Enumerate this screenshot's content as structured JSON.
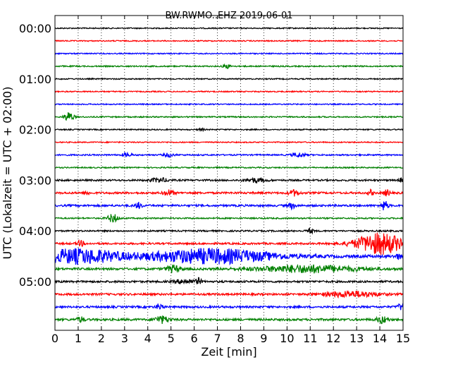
{
  "chart_data": {
    "type": "line",
    "title": "BW.RWMO..EHZ 2019-06-01",
    "xlabel": "Zeit  [min]",
    "ylabel": "UTC (Lokalzeit = UTC + 02:00)",
    "xlim": [
      0,
      15
    ],
    "x_ticks": [
      "0",
      "1",
      "2",
      "3",
      "4",
      "5",
      "6",
      "7",
      "8",
      "9",
      "10",
      "11",
      "12",
      "13",
      "14",
      "15"
    ],
    "y_tick_labels": [
      "00:00",
      "01:00",
      "02:00",
      "03:00",
      "04:00",
      "05:00"
    ],
    "grid": "vertical dotted lines at each minute",
    "trace_colors": [
      "#000000",
      "#ff0000",
      "#0000ff",
      "#008000"
    ],
    "traces": [
      {
        "start": "00:00",
        "color": "#000000",
        "noise": 0.8,
        "events": []
      },
      {
        "start": "00:15",
        "color": "#ff0000",
        "noise": 0.8,
        "events": []
      },
      {
        "start": "00:30",
        "color": "#0000ff",
        "noise": 0.8,
        "events": []
      },
      {
        "start": "00:45",
        "color": "#008000",
        "noise": 0.9,
        "events": [
          {
            "t": 7.4,
            "amp": 3,
            "dur": 0.2
          }
        ]
      },
      {
        "start": "01:00",
        "color": "#000000",
        "noise": 0.8,
        "events": []
      },
      {
        "start": "01:15",
        "color": "#ff0000",
        "noise": 0.8,
        "events": []
      },
      {
        "start": "01:30",
        "color": "#0000ff",
        "noise": 0.8,
        "events": []
      },
      {
        "start": "01:45",
        "color": "#008000",
        "noise": 0.9,
        "events": [
          {
            "t": 0.6,
            "amp": 7,
            "dur": 0.25
          }
        ]
      },
      {
        "start": "02:00",
        "color": "#000000",
        "noise": 0.8,
        "events": [
          {
            "t": 6.3,
            "amp": 2,
            "dur": 0.15
          }
        ]
      },
      {
        "start": "02:15",
        "color": "#ff0000",
        "noise": 0.8,
        "events": []
      },
      {
        "start": "02:30",
        "color": "#0000ff",
        "noise": 1.0,
        "events": [
          {
            "t": 3.1,
            "amp": 2.5,
            "dur": 0.3
          },
          {
            "t": 4.9,
            "amp": 2.5,
            "dur": 0.3
          },
          {
            "t": 10.5,
            "amp": 3,
            "dur": 0.4
          }
        ]
      },
      {
        "start": "02:45",
        "color": "#008000",
        "noise": 0.9,
        "events": []
      },
      {
        "start": "03:00",
        "color": "#000000",
        "noise": 1.2,
        "events": [
          {
            "t": 4.5,
            "amp": 3,
            "dur": 0.5
          },
          {
            "t": 8.6,
            "amp": 3,
            "dur": 0.6
          },
          {
            "t": 14.9,
            "amp": 3,
            "dur": 0.1
          }
        ]
      },
      {
        "start": "03:15",
        "color": "#ff0000",
        "noise": 1.4,
        "events": [
          {
            "t": 1.4,
            "amp": 4,
            "dur": 0.1
          },
          {
            "t": 4.9,
            "amp": 4,
            "dur": 0.3
          },
          {
            "t": 10.3,
            "amp": 4,
            "dur": 0.3
          },
          {
            "t": 13.6,
            "amp": 4,
            "dur": 0.15
          },
          {
            "t": 14.3,
            "amp": 4,
            "dur": 0.2
          }
        ]
      },
      {
        "start": "03:30",
        "color": "#0000ff",
        "noise": 1.4,
        "events": [
          {
            "t": 3.6,
            "amp": 4,
            "dur": 0.2
          },
          {
            "t": 10.2,
            "amp": 4,
            "dur": 0.2
          },
          {
            "t": 14.2,
            "amp": 7,
            "dur": 0.2
          }
        ]
      },
      {
        "start": "03:45",
        "color": "#008000",
        "noise": 1.0,
        "events": [
          {
            "t": 2.5,
            "amp": 6,
            "dur": 0.3
          }
        ]
      },
      {
        "start": "04:00",
        "color": "#000000",
        "noise": 1.1,
        "events": [
          {
            "t": 11.0,
            "amp": 3,
            "dur": 0.2
          }
        ]
      },
      {
        "start": "04:15",
        "color": "#ff0000",
        "noise": 1.3,
        "events": [
          {
            "t": 1.1,
            "amp": 4,
            "dur": 0.2
          },
          {
            "t": 14.0,
            "amp": 15,
            "dur": 1.4
          }
        ]
      },
      {
        "start": "04:30",
        "color": "#0000ff",
        "noise": 2.0,
        "events": [
          {
            "t": 1.0,
            "amp": 10,
            "dur": 2.4
          },
          {
            "t": 6.7,
            "amp": 10,
            "dur": 3.6
          },
          {
            "t": 14.8,
            "amp": 3,
            "dur": 0.2
          }
        ]
      },
      {
        "start": "04:45",
        "color": "#008000",
        "noise": 1.5,
        "events": [
          {
            "t": 5.1,
            "amp": 5,
            "dur": 0.4
          },
          {
            "t": 10.9,
            "amp": 5,
            "dur": 3.0
          }
        ]
      },
      {
        "start": "05:00",
        "color": "#000000",
        "noise": 1.4,
        "events": [
          {
            "t": 5.6,
            "amp": 3,
            "dur": 0.6
          },
          {
            "t": 6.2,
            "amp": 4,
            "dur": 0.15
          }
        ]
      },
      {
        "start": "05:15",
        "color": "#ff0000",
        "noise": 1.4,
        "events": [
          {
            "t": 12.8,
            "amp": 4,
            "dur": 1.5
          }
        ]
      },
      {
        "start": "05:30",
        "color": "#0000ff",
        "noise": 1.4,
        "events": [
          {
            "t": 4.5,
            "amp": 4,
            "dur": 0.2
          },
          {
            "t": 14.9,
            "amp": 4,
            "dur": 0.2
          }
        ]
      },
      {
        "start": "05:45",
        "color": "#008000",
        "noise": 1.5,
        "events": [
          {
            "t": 1.1,
            "amp": 4,
            "dur": 0.2
          },
          {
            "t": 4.6,
            "amp": 5,
            "dur": 0.4
          },
          {
            "t": 14.1,
            "amp": 5,
            "dur": 0.3
          }
        ]
      }
    ]
  }
}
